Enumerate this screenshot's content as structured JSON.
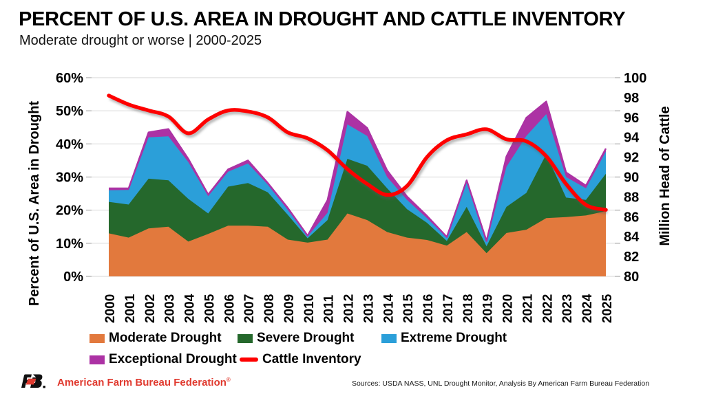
{
  "header": {
    "title": "PERCENT OF U.S. AREA IN DROUGHT AND CATTLE INVENTORY",
    "subtitle": "Moderate drought or worse | 2000-2025"
  },
  "chart_data": {
    "type": "stacked-area+line",
    "years": [
      "2000",
      "2001",
      "2002",
      "2003",
      "2004",
      "2005",
      "2006",
      "2007",
      "2008",
      "2009",
      "2010",
      "2011",
      "2012",
      "2013",
      "2014",
      "2015",
      "2016",
      "2017",
      "2018",
      "2019",
      "2020",
      "2021",
      "2022",
      "2023",
      "2024",
      "2025"
    ],
    "series": [
      {
        "name": "Moderate Drought",
        "color": "#E2793D",
        "values": [
          13.0,
          11.7,
          14.5,
          15.0,
          10.5,
          12.8,
          15.3,
          15.3,
          15.0,
          11.1,
          10.2,
          11.1,
          19.0,
          17.0,
          13.4,
          11.7,
          11.0,
          9.3,
          13.4,
          7.0,
          13.1,
          14.1,
          17.6,
          17.9,
          18.4,
          19.7
        ]
      },
      {
        "name": "Severe Drought",
        "color": "#25682C",
        "values": [
          9.5,
          10.0,
          15.0,
          14.0,
          12.9,
          6.2,
          11.8,
          12.9,
          10.4,
          7.5,
          1.3,
          5.9,
          16.5,
          16.4,
          13.2,
          8.6,
          5.2,
          1.4,
          7.6,
          2.1,
          7.9,
          11.1,
          19.3,
          5.9,
          4.7,
          11.3
        ]
      },
      {
        "name": "Extreme Drought",
        "color": "#2B9FD9",
        "values": [
          3.5,
          4.4,
          12.5,
          13.3,
          11.1,
          5.2,
          4.5,
          5.9,
          2.3,
          1.5,
          0.6,
          2.2,
          10.4,
          9.0,
          3.4,
          2.8,
          1.4,
          1.0,
          7.3,
          1.3,
          12.1,
          17.2,
          12.1,
          6.2,
          3.5,
          6.7
        ]
      },
      {
        "name": "Exceptional Drought",
        "color": "#AC32A4",
        "values": [
          0.6,
          0.5,
          1.5,
          2.2,
          1.0,
          0.5,
          0.7,
          0.9,
          0.5,
          0.6,
          0.2,
          3.8,
          3.8,
          2.4,
          2.0,
          1.0,
          0.7,
          0.2,
          0.7,
          0.3,
          3.1,
          5.5,
          3.8,
          1.4,
          0.8,
          0.9
        ]
      }
    ],
    "line_series": {
      "name": "Cattle Inventory",
      "color": "#FE0000",
      "values": [
        98.2,
        97.3,
        96.7,
        96.1,
        94.4,
        95.8,
        96.7,
        96.6,
        96.0,
        94.5,
        93.9,
        92.7,
        90.8,
        89.3,
        88.2,
        89.1,
        92.0,
        93.7,
        94.3,
        94.8,
        93.8,
        93.6,
        92.1,
        89.3,
        87.2,
        86.7
      ]
    },
    "left_axis": {
      "label": "Percent of U.S. Area in Drought",
      "min": 0,
      "max": 60,
      "ticks": [
        "0%",
        "10%",
        "20%",
        "30%",
        "40%",
        "50%",
        "60%"
      ]
    },
    "right_axis": {
      "label": "Million Head of Cattle",
      "min": 80,
      "max": 100,
      "ticks": [
        "80",
        "82",
        "84",
        "86",
        "88",
        "90",
        "92",
        "94",
        "96",
        "98",
        "100"
      ]
    },
    "grid": true,
    "gridline_color": "#DEDEDE",
    "tick_color": "#B7B7B7"
  },
  "footer": {
    "brand": "American Farm Bureau Federation",
    "reg": "®",
    "sources": "Sources: USDA NASS, UNL Drought Monitor, Analysis By American Farm Bureau Federation"
  }
}
